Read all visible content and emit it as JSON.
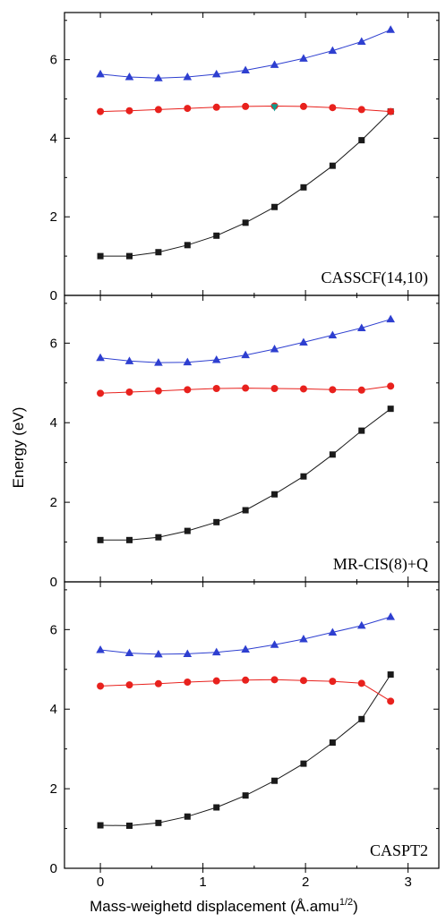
{
  "chart_data": [
    {
      "type": "line",
      "title": "CASSCF(14,10)",
      "ylim": [
        0,
        7.2
      ],
      "xlim": [
        -0.35,
        3.3
      ],
      "yticks": [
        0,
        2,
        4,
        6
      ],
      "x": [
        0,
        0.283,
        0.566,
        0.849,
        1.132,
        1.415,
        1.698,
        1.981,
        2.264,
        2.547,
        2.83
      ],
      "series": [
        {
          "marker": "square",
          "color": "#1a1a1a",
          "values": [
            1.0,
            1.0,
            1.1,
            1.28,
            1.52,
            1.85,
            2.25,
            2.75,
            3.3,
            3.95,
            4.68
          ]
        },
        {
          "marker": "circle",
          "color": "#e8211d",
          "values": [
            4.68,
            4.7,
            4.73,
            4.76,
            4.79,
            4.81,
            4.82,
            4.81,
            4.78,
            4.73,
            4.68
          ]
        },
        {
          "marker": "triangle",
          "color": "#2e3fd0",
          "values": [
            5.63,
            5.56,
            5.53,
            5.56,
            5.63,
            5.73,
            5.87,
            6.03,
            6.23,
            6.46,
            6.76
          ]
        }
      ],
      "extra_points": [
        {
          "x": 1.698,
          "y": 4.8,
          "marker": "diamond",
          "color": "#0f9b8e"
        }
      ]
    },
    {
      "type": "line",
      "title": "MR-CIS(8)+Q",
      "ylim": [
        0,
        7.2
      ],
      "xlim": [
        -0.35,
        3.3
      ],
      "yticks": [
        0,
        2,
        4,
        6
      ],
      "x": [
        0,
        0.283,
        0.566,
        0.849,
        1.132,
        1.415,
        1.698,
        1.981,
        2.264,
        2.547,
        2.83
      ],
      "series": [
        {
          "marker": "square",
          "color": "#1a1a1a",
          "values": [
            1.05,
            1.05,
            1.12,
            1.28,
            1.5,
            1.8,
            2.2,
            2.65,
            3.2,
            3.8,
            4.35
          ]
        },
        {
          "marker": "circle",
          "color": "#e8211d",
          "values": [
            4.74,
            4.77,
            4.8,
            4.83,
            4.86,
            4.87,
            4.86,
            4.85,
            4.83,
            4.82,
            4.92
          ]
        },
        {
          "marker": "triangle",
          "color": "#2e3fd0",
          "values": [
            5.63,
            5.55,
            5.51,
            5.52,
            5.58,
            5.7,
            5.85,
            6.02,
            6.2,
            6.38,
            6.6
          ]
        }
      ]
    },
    {
      "type": "line",
      "title": "CASPT2",
      "ylim": [
        0,
        7.2
      ],
      "xlim": [
        -0.35,
        3.3
      ],
      "yticks": [
        0,
        2,
        4,
        6
      ],
      "x": [
        0,
        0.283,
        0.566,
        0.849,
        1.132,
        1.415,
        1.698,
        1.981,
        2.264,
        2.547,
        2.83
      ],
      "xticks": [
        0,
        1,
        2,
        3
      ],
      "series": [
        {
          "marker": "square",
          "color": "#1a1a1a",
          "values": [
            1.08,
            1.07,
            1.14,
            1.3,
            1.53,
            1.83,
            2.2,
            2.63,
            3.16,
            3.75,
            4.87
          ]
        },
        {
          "marker": "circle",
          "color": "#e8211d",
          "values": [
            4.58,
            4.61,
            4.64,
            4.68,
            4.71,
            4.73,
            4.74,
            4.72,
            4.7,
            4.65,
            4.2
          ]
        },
        {
          "marker": "triangle",
          "color": "#2e3fd0",
          "values": [
            5.49,
            5.41,
            5.38,
            5.39,
            5.43,
            5.5,
            5.62,
            5.76,
            5.93,
            6.1,
            6.32
          ]
        }
      ]
    }
  ],
  "ylabel": "Energy (eV)",
  "xlabel": "Mass-weighetd displacement (Å.amu",
  "xlabel_sup": "1/2",
  "xlabel_close": ")"
}
